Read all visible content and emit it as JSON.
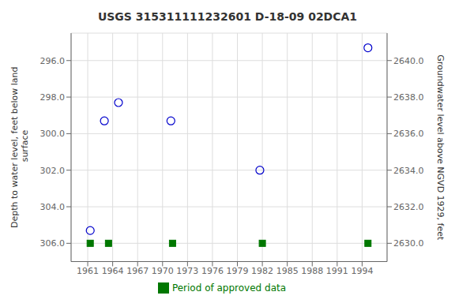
{
  "chart_data": {
    "type": "scatter",
    "title": "USGS 315311111232601 D-18-09 02DCA1",
    "ylabel": "Depth to water level, feet below land\n surface",
    "y2label": "Groundwater level above NGVD 1929, feet",
    "series": [
      {
        "type": "scatter",
        "marker": "open_circle",
        "color": "#0000cc",
        "x": [
          1961.3,
          1963.0,
          1964.7,
          1971.0,
          1981.7,
          1994.7
        ],
        "values": [
          305.3,
          299.3,
          298.3,
          299.3,
          302.0,
          295.3
        ]
      },
      {
        "name": "Period of approved data",
        "type": "scatter",
        "marker": "square",
        "color": "#007700",
        "x": [
          1961.3,
          1963.5,
          1971.2,
          1982.0,
          1994.7
        ],
        "values": [
          306.0,
          306.0,
          306.0,
          306.0,
          306.0
        ]
      }
    ],
    "xlim": [
      1959.0,
      1997.0
    ],
    "xticks": [
      1961,
      1964,
      1967,
      1970,
      1973,
      1976,
      1979,
      1982,
      1985,
      1988,
      1991,
      1994
    ],
    "ylim": [
      307.0,
      294.5
    ],
    "yticks": [
      {
        "value": 296.0,
        "label": "296.0"
      },
      {
        "value": 298.0,
        "label": "298.0"
      },
      {
        "value": 300.0,
        "label": "300.0"
      },
      {
        "value": 302.0,
        "label": "302.0"
      },
      {
        "value": 304.0,
        "label": "304.0"
      },
      {
        "value": 306.0,
        "label": "306.0"
      }
    ],
    "y2lim": [
      2629.0,
      2641.5
    ],
    "y2ticks": [
      {
        "value": 2630.0,
        "label": "2630.0"
      },
      {
        "value": 2632.0,
        "label": "2632.0"
      },
      {
        "value": 2634.0,
        "label": "2634.0"
      },
      {
        "value": 2636.0,
        "label": "2636.0"
      },
      {
        "value": 2638.0,
        "label": "2638.0"
      },
      {
        "value": 2640.0,
        "label": "2640.0"
      }
    ],
    "grid": true,
    "legend": "bottom"
  }
}
